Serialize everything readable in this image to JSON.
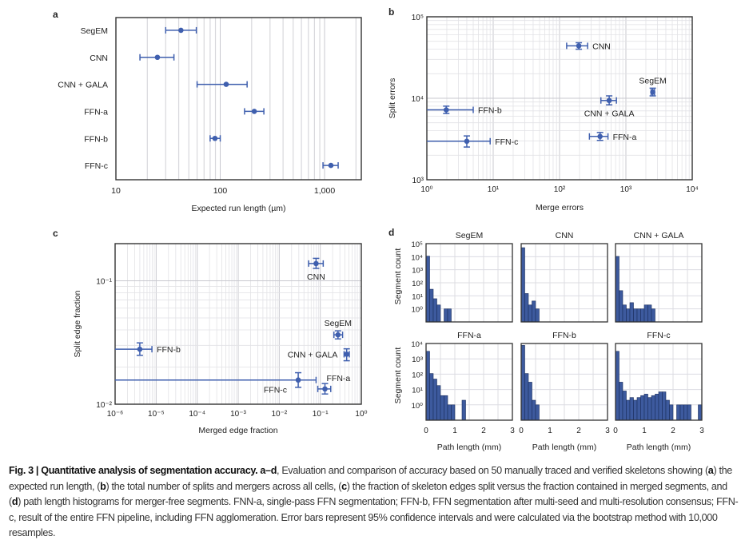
{
  "figure": {
    "caption": {
      "label": "Fig. 3 | Quantitative analysis of segmentation accuracy.",
      "range": "a–d",
      "text_1": ", Evaluation and comparison of accuracy based on 50 manually traced and verified skeletons showing (",
      "a": "a",
      "text_2": ") the expected run length, (",
      "b": "b",
      "text_3": ") the total number of splits and mergers across all cells, (",
      "c": "c",
      "text_4": ") the fraction of skeleton edges split versus the fraction contained in merged segments, and (",
      "d": "d",
      "text_5": ") path length histograms for merger-free segments. FNN-a, single-pass FFN segmentation; FFN-b, FFN segmentation after multi-seed and multi-resolution consensus; FFN-c, result of the entire FFN pipeline, including FFN agglomeration. Error bars represent 95% confidence intervals and were calculated via the bootstrap method with 10,000 resamples."
    },
    "colors": {
      "marker": "#3f5fae",
      "bar_fill": "#3d5a9e",
      "bar_edge": "#1c2f5e",
      "grid": "#d4d4d8",
      "axis": "#333333"
    }
  },
  "chart_data": [
    {
      "panel": "a",
      "type": "errorbar",
      "orientation": "horizontal",
      "xlabel": "Expected run length (µm)",
      "ylabel": "",
      "xscale": "log",
      "xlim": [
        10,
        2250
      ],
      "xticks": [
        10,
        100,
        1000
      ],
      "xtick_labels": [
        "10",
        "100",
        "1,000"
      ],
      "grid": "vertical",
      "categories": [
        "SegEM",
        "CNN",
        "CNN + GALA",
        "FFN-a",
        "FFN-b",
        "FFN-c"
      ],
      "values": [
        42,
        25,
        114,
        212,
        89,
        1150
      ],
      "err_low": [
        30,
        17,
        60,
        171,
        80,
        966
      ],
      "err_high": [
        59,
        36,
        181,
        262,
        100,
        1350
      ]
    },
    {
      "panel": "b",
      "type": "scatter",
      "xlabel": "Merge errors",
      "ylabel": "Split errors",
      "xscale": "log",
      "yscale": "log",
      "xlim": [
        1,
        10000
      ],
      "ylim": [
        1000,
        100000
      ],
      "xtick_labels": [
        "10⁰",
        "10¹",
        "10²",
        "10³",
        "10⁴"
      ],
      "ytick_labels": [
        "10³",
        "10⁴",
        "10⁵"
      ],
      "grid": "both",
      "points": [
        {
          "label": "CNN",
          "x": 195,
          "y": 44000,
          "x_low": 128,
          "x_high": 265,
          "y_low": 40000,
          "y_high": 48000,
          "label_pos": "right"
        },
        {
          "label": "SegEM",
          "x": 2540,
          "y": 11900,
          "x_low": 2400,
          "x_high": 2700,
          "y_low": 10700,
          "y_high": 13300,
          "label_pos": "above"
        },
        {
          "label": "CNN + GALA",
          "x": 560,
          "y": 9400,
          "x_low": 420,
          "x_high": 720,
          "y_low": 8300,
          "y_high": 10700,
          "label_pos": "below"
        },
        {
          "label": "FFN-b",
          "x": 1.96,
          "y": 7200,
          "x_low": 1,
          "x_high": 5.0,
          "y_low": 6500,
          "y_high": 8000,
          "label_pos": "right"
        },
        {
          "label": "FFN-c",
          "x": 4.0,
          "y": 2970,
          "x_low": 1,
          "x_high": 9.0,
          "y_low": 2520,
          "y_high": 3450,
          "label_pos": "right"
        },
        {
          "label": "FFN-a",
          "x": 408,
          "y": 3400,
          "x_low": 282,
          "x_high": 537,
          "y_low": 3040,
          "y_high": 3800,
          "label_pos": "right"
        }
      ]
    },
    {
      "panel": "c",
      "type": "scatter",
      "xlabel": "Merged edge fraction",
      "ylabel": "Split edge fraction",
      "xscale": "log",
      "yscale": "log",
      "xlim": [
        1e-06,
        1
      ],
      "ylim": [
        0.01,
        0.2
      ],
      "xtick_labels": [
        "10⁻⁶",
        "10⁻⁵",
        "10⁻⁴",
        "10⁻³",
        "10⁻²",
        "10⁻¹",
        "10⁰"
      ],
      "ytick_labels": [
        "10⁻²",
        "10⁻¹"
      ],
      "grid": "both",
      "points": [
        {
          "label": "CNN",
          "x": 0.079,
          "y": 0.138,
          "x_low": 0.052,
          "x_high": 0.118,
          "y_low": 0.126,
          "y_high": 0.152,
          "label_pos": "below"
        },
        {
          "label": "SegEM",
          "x": 0.27,
          "y": 0.0365,
          "x_low": 0.215,
          "x_high": 0.35,
          "y_low": 0.0338,
          "y_high": 0.0393,
          "label_pos": "above"
        },
        {
          "label": "CNN + GALA",
          "x": 0.44,
          "y": 0.0254,
          "x_low": 0.38,
          "x_high": 0.51,
          "y_low": 0.0225,
          "y_high": 0.0281,
          "label_pos": "left"
        },
        {
          "label": "FFN-b",
          "x": 4e-06,
          "y": 0.0279,
          "x_low": 1e-06,
          "x_high": 7.9e-06,
          "y_low": 0.0249,
          "y_high": 0.0314,
          "label_pos": "right"
        },
        {
          "label": "FFN-c",
          "x": 0.029,
          "y": 0.0157,
          "x_low": 1e-06,
          "x_high": 0.079,
          "y_low": 0.0137,
          "y_high": 0.018,
          "label_pos": "below-left"
        },
        {
          "label": "FFN-a",
          "x": 0.13,
          "y": 0.0133,
          "x_low": 0.087,
          "x_high": 0.18,
          "y_low": 0.0121,
          "y_high": 0.0147,
          "label_pos": "above-right"
        }
      ]
    },
    {
      "panel": "d",
      "type": "bar",
      "subtype": "histogram",
      "xlabel": "Path length (mm)",
      "ylabel": "Segment count",
      "xlim": [
        0,
        3
      ],
      "xtick_labels": [
        "0",
        "1",
        "2",
        "3"
      ],
      "bin_width_mm": 0.125,
      "yscale": "log",
      "rows": [
        {
          "ylim": [
            0.1,
            100000
          ],
          "ytick_labels": [
            "10⁰",
            "10¹",
            "10²",
            "10³",
            "10⁴",
            "10⁵"
          ],
          "panels": [
            {
              "title": "SegEM",
              "counts": [
                11000,
                32,
                6,
                2,
                0,
                1,
                1
              ]
            },
            {
              "title": "CNN",
              "counts": [
                49000,
                15,
                2,
                4,
                1
              ]
            },
            {
              "title": "CNN + GALA",
              "counts": [
                10500,
                25,
                2,
                1,
                3,
                1,
                1,
                1,
                2,
                2,
                1
              ]
            }
          ]
        },
        {
          "ylim": [
            0.1,
            10000
          ],
          "ytick_labels": [
            "10⁰",
            "10¹",
            "10²",
            "10³",
            "10⁴"
          ],
          "panels": [
            {
              "title": "FFN-a",
              "counts": [
                3100,
                110,
                48,
                18,
                4,
                4,
                1,
                1,
                0,
                0,
                2
              ]
            },
            {
              "title": "FFN-b",
              "counts": [
                7500,
                110,
                30,
                2,
                1
              ]
            },
            {
              "title": "FFN-c",
              "counts": [
                3100,
                30,
                8,
                2,
                3,
                2,
                3,
                4,
                5,
                3,
                4,
                5,
                7,
                7,
                2,
                1,
                0,
                1,
                1,
                1,
                1,
                0,
                0,
                1
              ]
            }
          ]
        }
      ]
    }
  ]
}
